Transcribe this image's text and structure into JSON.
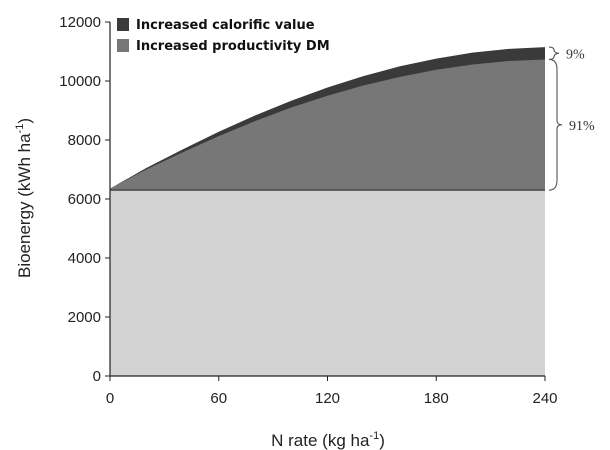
{
  "chart_data": {
    "type": "area",
    "xlabel_main": "N rate (kg ha",
    "xlabel_sup": "-1",
    "xlabel_close": ")",
    "ylabel_main": "Bioenergy  (kWh ha",
    "ylabel_sup": "-1",
    "ylabel_close": ")",
    "xlim": [
      0,
      240
    ],
    "ylim": [
      0,
      12000
    ],
    "x_ticks": [
      0,
      60,
      120,
      180,
      240
    ],
    "y_ticks": [
      0,
      2000,
      4000,
      6000,
      8000,
      10000,
      12000
    ],
    "grid": false,
    "legend_position": "top-left",
    "baseline": 6300,
    "x": [
      0,
      20,
      40,
      60,
      80,
      100,
      120,
      140,
      160,
      180,
      200,
      220,
      240
    ],
    "series": [
      {
        "name": "Increased calorific value",
        "color": "#3a3a3a",
        "values": [
          6350,
          7050,
          7680,
          8280,
          8830,
          9330,
          9780,
          10170,
          10500,
          10760,
          10960,
          11090,
          11150
        ]
      },
      {
        "name": "Increased productivity DM",
        "color": "#777777",
        "values": [
          6350,
          7000,
          7580,
          8130,
          8640,
          9100,
          9500,
          9850,
          10140,
          10380,
          10560,
          10680,
          10730
        ]
      }
    ],
    "base_fill_color": "#d3d3d3",
    "annotations": [
      {
        "label": "9%",
        "from": 10730,
        "to": 11150
      },
      {
        "label": "91%",
        "from": 6300,
        "to": 10730
      }
    ]
  }
}
